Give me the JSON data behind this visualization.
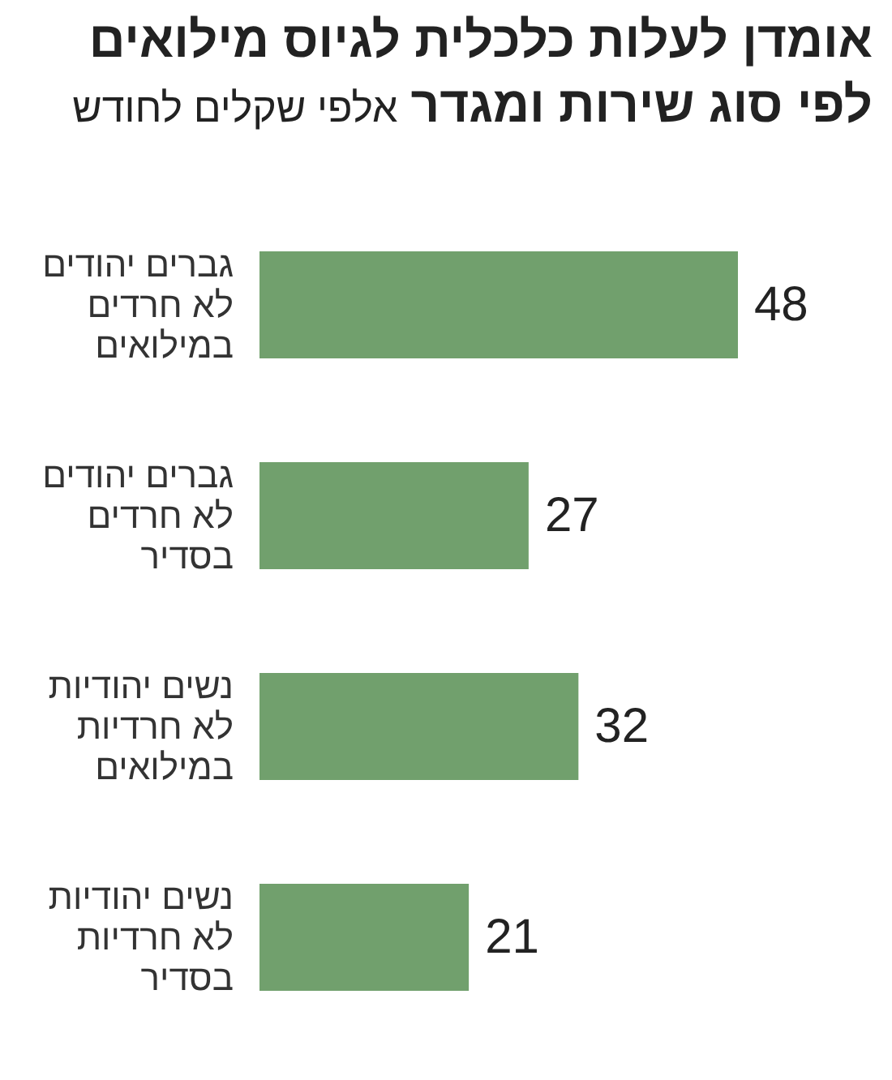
{
  "chart_data": {
    "type": "bar",
    "orientation": "horizontal",
    "title": "אומדן לעלות כלכלית לגיוס מילואים לפי סוג שירות ומגדר",
    "subtitle": "אלפי שקלים לחודש",
    "categories": [
      "גברים יהודים\nלא חרדים\nבמילואים",
      "גברים יהודים\nלא חרדים\nבסדיר",
      "נשים יהודיות\nלא חרדיות\nבמילואים",
      "נשים יהודיות\nלא חרדיות\nבסדיר"
    ],
    "values": [
      48,
      27,
      32,
      21
    ],
    "color": "#71a06d",
    "data_labels": true
  }
}
